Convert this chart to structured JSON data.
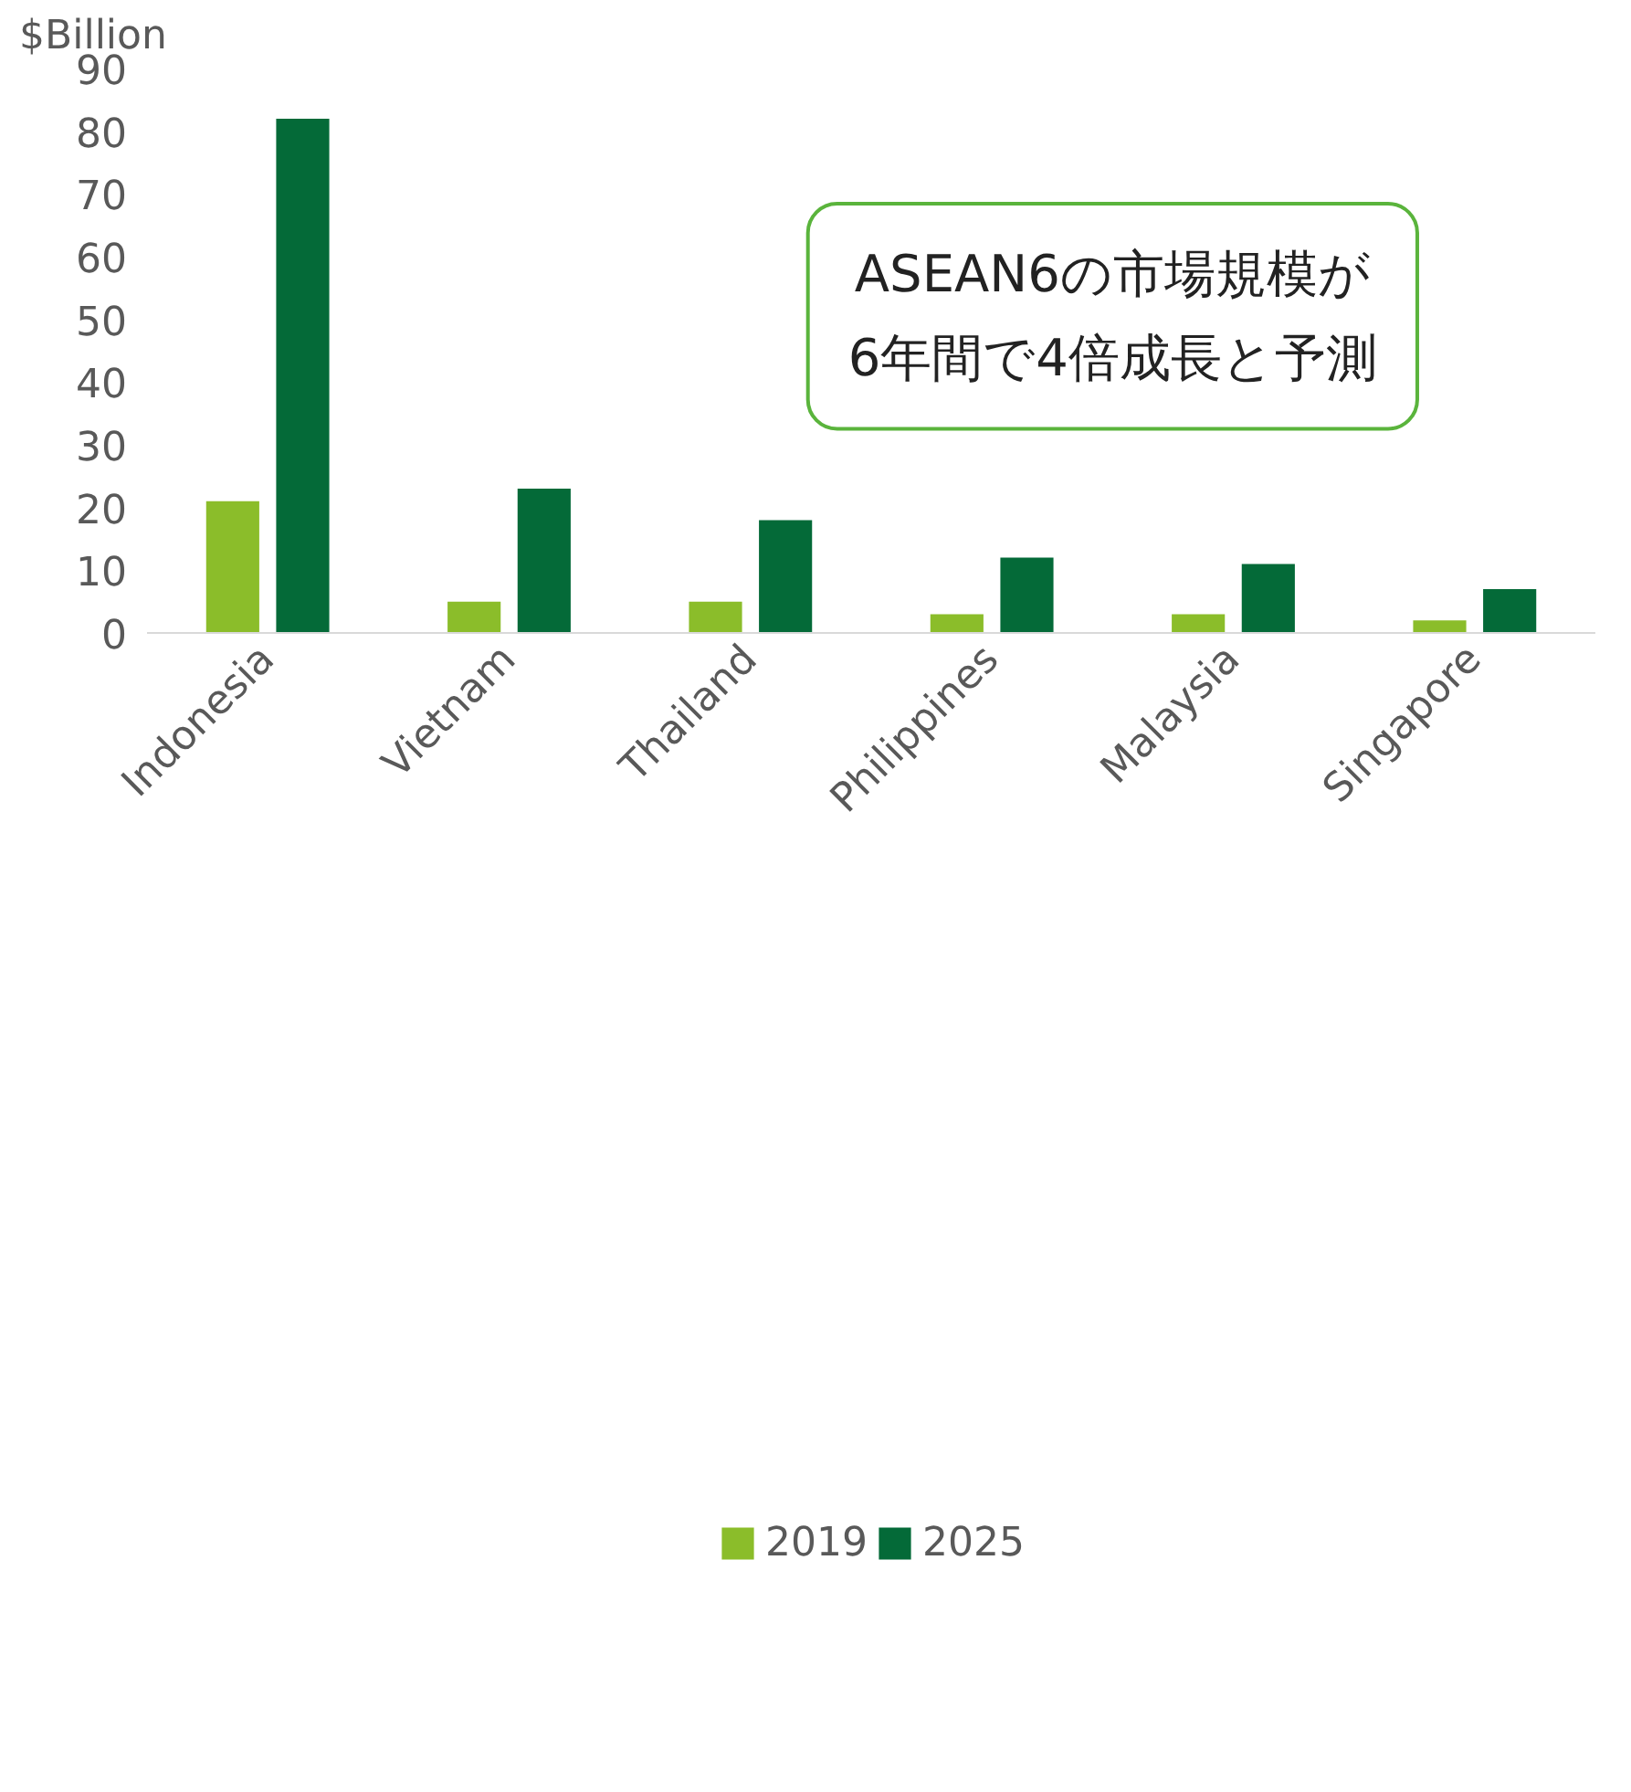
{
  "chart_data": {
    "type": "bar",
    "ylabel": "$Billion",
    "categories": [
      "Indonesia",
      "Vietnam",
      "Thailand",
      "Philippines",
      "Malaysia",
      "Singapore"
    ],
    "series": [
      {
        "name": "2019",
        "color": "#8bbd2a",
        "values": [
          21,
          5,
          5,
          3,
          3,
          2
        ]
      },
      {
        "name": "2025",
        "color": "#046a38",
        "values": [
          82,
          23,
          18,
          12,
          11,
          7
        ]
      }
    ],
    "ylim": [
      0,
      90
    ],
    "yticks": [
      0,
      10,
      20,
      30,
      40,
      50,
      60,
      70,
      80,
      90
    ],
    "grid": false,
    "legend": "bottom",
    "annotations": [
      "ASEAN6の市場規模が\n6年間で4倍成長と予測"
    ]
  }
}
